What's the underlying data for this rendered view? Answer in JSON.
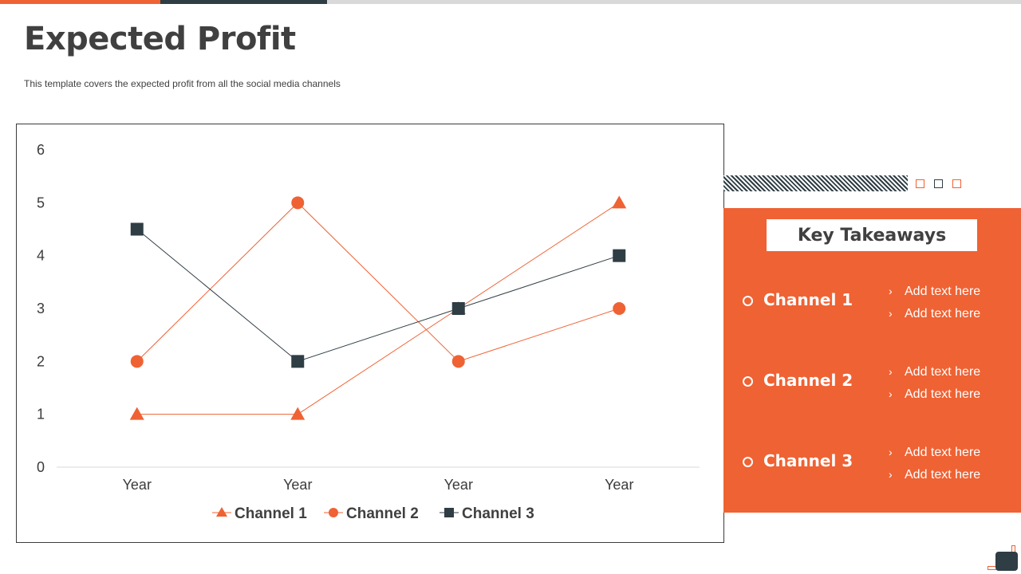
{
  "header": {
    "title": "Expected Profit",
    "subtitle": "This template covers the expected profit from all the social media channels"
  },
  "colors": {
    "accent": "#ef6233",
    "dark": "#2f3d44",
    "gray": "#d9d9d9",
    "text": "#404040"
  },
  "chart_data": {
    "type": "line",
    "categories": [
      "Year",
      "Year",
      "Year",
      "Year"
    ],
    "series": [
      {
        "name": "Channel 1",
        "values": [
          1,
          1,
          3,
          5
        ],
        "color": "#ef6233",
        "marker": "triangle"
      },
      {
        "name": "Channel 2",
        "values": [
          2,
          5,
          2,
          3
        ],
        "color": "#ef6233",
        "marker": "circle"
      },
      {
        "name": "Channel 3",
        "values": [
          4.5,
          2,
          3,
          4
        ],
        "color": "#2f3d44",
        "marker": "square"
      }
    ],
    "ylim": [
      0,
      6
    ],
    "yticks": [
      0,
      1,
      2,
      3,
      4,
      5,
      6
    ],
    "grid": false,
    "legend": "bottom"
  },
  "takeaways": {
    "title": "Key Takeaways",
    "groups": [
      {
        "name": "Channel 1",
        "items": [
          "Add text here",
          "Add text here"
        ]
      },
      {
        "name": "Channel 2",
        "items": [
          "Add text here",
          "Add text here"
        ]
      },
      {
        "name": "Channel 3",
        "items": [
          "Add text here",
          "Add text here"
        ]
      }
    ]
  }
}
